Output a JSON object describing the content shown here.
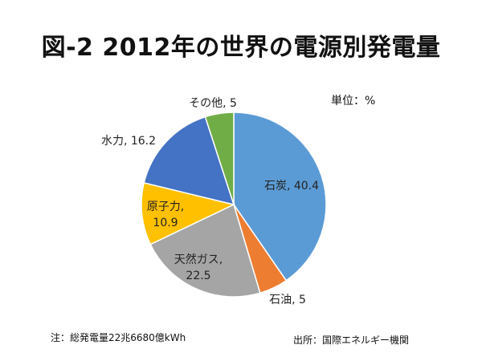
{
  "title": "図-2 2012年の世界の電源別発電量",
  "unit_label": "単位：%",
  "note": "注：総発電量22兆6680億kWh",
  "source": "出所：国際エネルギー機関",
  "chart_data": {
    "type": "pie",
    "title": "図-2 2012年の世界の電源別発電量",
    "start_direction": "top (12 o'clock)",
    "direction": "clockwise",
    "slices": [
      {
        "label": "石炭",
        "value": 40.4,
        "color": "#5b9bd5",
        "label_text": "石炭, 40.4"
      },
      {
        "label": "石油",
        "value": 5,
        "color": "#ed7d31",
        "label_text": "石油, 5"
      },
      {
        "label": "天然ガス",
        "value": 22.5,
        "color": "#a5a5a5",
        "label_text": "天然ガス,\n22.5"
      },
      {
        "label": "原子力",
        "value": 10.9,
        "color": "#ffc000",
        "label_text": "原子力,\n10.9"
      },
      {
        "label": "水力",
        "value": 16.2,
        "color": "#4472c4",
        "label_text": "水力, 16.2"
      },
      {
        "label": "その他",
        "value": 5,
        "color": "#70ad47",
        "label_text": "その他, 5"
      }
    ]
  }
}
